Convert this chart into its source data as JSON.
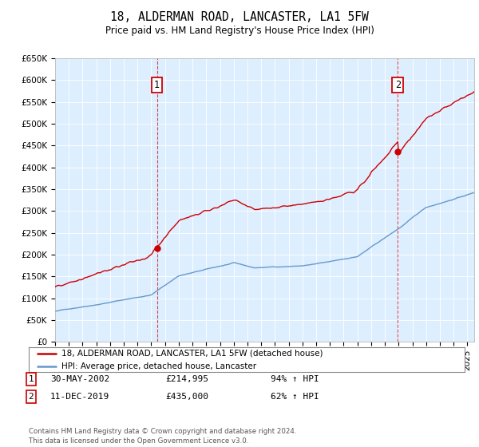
{
  "title": "18, ALDERMAN ROAD, LANCASTER, LA1 5FW",
  "subtitle": "Price paid vs. HM Land Registry's House Price Index (HPI)",
  "ylabel_ticks": [
    "£0",
    "£50K",
    "£100K",
    "£150K",
    "£200K",
    "£250K",
    "£300K",
    "£350K",
    "£400K",
    "£450K",
    "£500K",
    "£550K",
    "£600K",
    "£650K"
  ],
  "ytick_values": [
    0,
    50000,
    100000,
    150000,
    200000,
    250000,
    300000,
    350000,
    400000,
    450000,
    500000,
    550000,
    600000,
    650000
  ],
  "sale1_date": 2002.41,
  "sale1_price": 214995,
  "sale2_date": 2019.94,
  "sale2_price": 435000,
  "red_color": "#cc0000",
  "blue_color": "#6699cc",
  "legend_red": "18, ALDERMAN ROAD, LANCASTER, LA1 5FW (detached house)",
  "legend_blue": "HPI: Average price, detached house, Lancaster",
  "note1_label": "1",
  "note1_date": "30-MAY-2002",
  "note1_price": "£214,995",
  "note1_hpi": "94% ↑ HPI",
  "note2_label": "2",
  "note2_date": "11-DEC-2019",
  "note2_price": "£435,000",
  "note2_hpi": "62% ↑ HPI",
  "footer": "Contains HM Land Registry data © Crown copyright and database right 2024.\nThis data is licensed under the Open Government Licence v3.0.",
  "plot_bg": "#ddeeff",
  "xmin": 1995,
  "xmax": 2025.5,
  "ymin": 0,
  "ymax": 650000
}
